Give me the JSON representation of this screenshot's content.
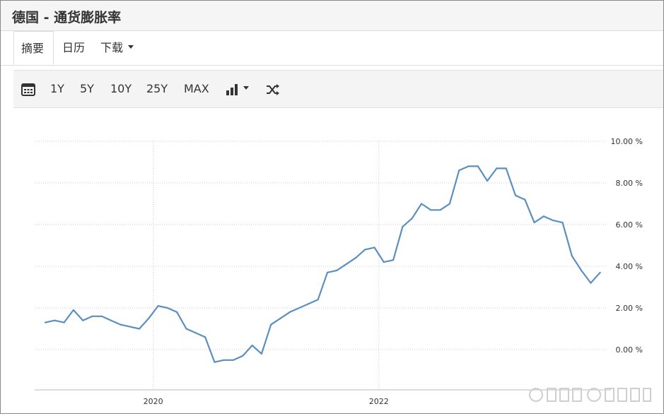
{
  "header": {
    "title": "德国 - 通货膨胀率"
  },
  "tabs": [
    {
      "label": "摘要"
    },
    {
      "label": "日历"
    },
    {
      "label": "下载"
    }
  ],
  "toolbar": {
    "items": [
      "1Y",
      "5Y",
      "10Y",
      "25Y",
      "MAX"
    ],
    "icons": [
      "calendar-icon",
      "bar-chart-icon",
      "chevron-down-icon",
      "shuffle-icon"
    ]
  },
  "colors": {
    "line": "#5b8fbf",
    "grid": "#cccccc",
    "text": "#333333"
  },
  "chart_data": {
    "type": "line",
    "title": "",
    "xlabel": "",
    "ylabel": "",
    "ylim": [
      -2,
      10
    ],
    "yticks": [
      10,
      8,
      6,
      4,
      2,
      0
    ],
    "ytick_labels": [
      "10.00 %",
      "8.00 %",
      "6.00 %",
      "4.00 %",
      "2.00 %",
      "0.00 %"
    ],
    "xtick_labels": [
      "2020",
      "2022"
    ],
    "grid": true,
    "series": [
      {
        "values": [
          1.3,
          1.4,
          1.3,
          1.9,
          1.4,
          1.6,
          1.6,
          1.4,
          1.2,
          1.1,
          1.0,
          1.5,
          2.1,
          2.0,
          1.8,
          1.0,
          0.8,
          0.6,
          -0.6,
          -0.5,
          -0.5,
          -0.3,
          0.2,
          -0.2,
          1.2,
          1.5,
          1.8,
          2.0,
          2.2,
          2.4,
          3.7,
          3.8,
          4.1,
          4.4,
          4.8,
          4.9,
          4.2,
          4.3,
          5.9,
          6.3,
          7.0,
          6.7,
          6.7,
          7.0,
          8.6,
          8.8,
          8.8,
          8.1,
          8.7,
          8.7,
          7.4,
          7.2,
          6.1,
          6.4,
          6.2,
          6.1,
          4.5,
          3.8,
          3.2,
          3.7
        ]
      }
    ]
  }
}
